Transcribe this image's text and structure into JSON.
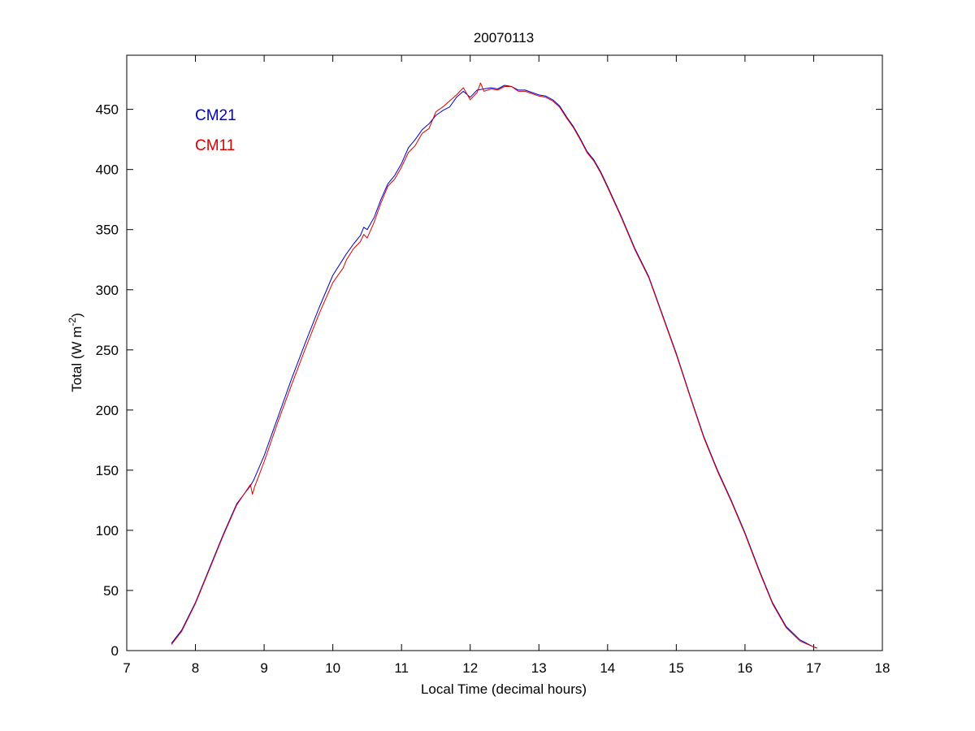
{
  "chart_data": {
    "type": "line",
    "title": "20070113",
    "xlabel": "Local Time (decimal hours)",
    "ylabel_main": "Total (W m",
    "ylabel_sup": "-2",
    "ylabel_tail": ")",
    "xlim": [
      7,
      18
    ],
    "ylim": [
      0,
      495
    ],
    "xticks": [
      "7",
      "8",
      "9",
      "10",
      "11",
      "12",
      "13",
      "14",
      "15",
      "16",
      "17",
      "18"
    ],
    "yticks": [
      "0",
      "50",
      "100",
      "150",
      "200",
      "250",
      "300",
      "350",
      "400",
      "450"
    ],
    "grid": false,
    "legend_placement": "top-left",
    "series": [
      {
        "name": "CM21",
        "color": "#0000cc",
        "x": [
          7.65,
          7.8,
          8.0,
          8.2,
          8.4,
          8.6,
          8.8,
          8.85,
          9.0,
          9.2,
          9.4,
          9.6,
          9.8,
          10.0,
          10.2,
          10.3,
          10.4,
          10.45,
          10.5,
          10.6,
          10.7,
          10.8,
          10.9,
          11.0,
          11.1,
          11.2,
          11.3,
          11.4,
          11.5,
          11.6,
          11.7,
          11.8,
          11.9,
          12.0,
          12.1,
          12.2,
          12.3,
          12.4,
          12.5,
          12.6,
          12.7,
          12.8,
          12.9,
          13.0,
          13.1,
          13.2,
          13.3,
          13.4,
          13.5,
          13.6,
          13.7,
          13.8,
          13.9,
          14.0,
          14.2,
          14.4,
          14.6,
          14.8,
          15.0,
          15.2,
          15.4,
          15.6,
          15.8,
          16.0,
          16.2,
          16.4,
          16.6,
          16.8,
          17.0,
          17.05
        ],
        "values": [
          6,
          17,
          40,
          68,
          96,
          122,
          137,
          142,
          162,
          194,
          226,
          256,
          285,
          312,
          330,
          338,
          345,
          352,
          350,
          360,
          375,
          388,
          395,
          405,
          418,
          425,
          433,
          438,
          445,
          449,
          452,
          460,
          465,
          460,
          466,
          467,
          468,
          467,
          470,
          469,
          466,
          466,
          464,
          462,
          461,
          458,
          453,
          444,
          436,
          426,
          415,
          408,
          398,
          386,
          361,
          334,
          311,
          279,
          247,
          212,
          178,
          150,
          125,
          98,
          68,
          40,
          20,
          9,
          3,
          2
        ]
      },
      {
        "name": "CM11",
        "color": "#dd0000",
        "x": [
          7.65,
          7.8,
          8.0,
          8.2,
          8.4,
          8.6,
          8.8,
          8.83,
          8.86,
          9.0,
          9.2,
          9.4,
          9.6,
          9.8,
          10.0,
          10.15,
          10.2,
          10.3,
          10.4,
          10.45,
          10.5,
          10.6,
          10.7,
          10.8,
          10.9,
          11.0,
          11.1,
          11.2,
          11.3,
          11.4,
          11.5,
          11.6,
          11.7,
          11.8,
          11.9,
          12.0,
          12.1,
          12.15,
          12.2,
          12.3,
          12.4,
          12.5,
          12.6,
          12.7,
          12.8,
          12.9,
          13.0,
          13.1,
          13.2,
          13.3,
          13.4,
          13.5,
          13.6,
          13.7,
          13.8,
          13.9,
          14.0,
          14.2,
          14.4,
          14.6,
          14.8,
          15.0,
          15.2,
          15.4,
          15.6,
          15.8,
          16.0,
          16.2,
          16.4,
          16.6,
          16.8,
          17.0,
          17.05
        ],
        "values": [
          5,
          16,
          39,
          67,
          95,
          121,
          138,
          130,
          136,
          157,
          190,
          221,
          251,
          280,
          306,
          318,
          325,
          334,
          340,
          346,
          343,
          356,
          372,
          386,
          392,
          402,
          414,
          420,
          430,
          434,
          448,
          452,
          457,
          462,
          468,
          458,
          464,
          472,
          465,
          467,
          466,
          469,
          469,
          465,
          465,
          463,
          461,
          460,
          457,
          452,
          443,
          435,
          425,
          414,
          407,
          397,
          385,
          360,
          333,
          310,
          278,
          246,
          211,
          177,
          149,
          124,
          97,
          67,
          39,
          19,
          8,
          3,
          2
        ]
      }
    ]
  }
}
